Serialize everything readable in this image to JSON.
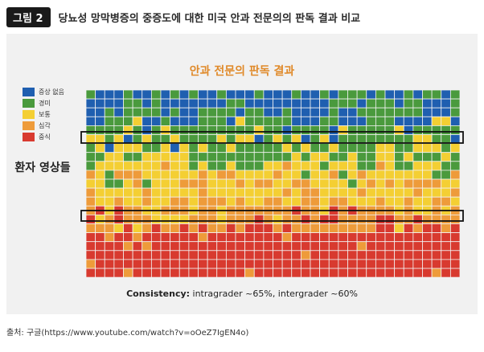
{
  "header": {
    "badge": "그림 2",
    "title": "당뇨성 망막병증의 중증도에 대한 미국 안과 전문의의 판독 결과 비교"
  },
  "chart_data": {
    "type": "heatmap",
    "title": "안과 전문의 판독 결과",
    "ylabel": "환자 영상들",
    "legend": [
      {
        "label": "증상 없음",
        "color": "#1f5fb0"
      },
      {
        "label": "경미",
        "color": "#4a9a3d"
      },
      {
        "label": "보통",
        "color": "#f4cf33"
      },
      {
        "label": "심각",
        "color": "#ee9b3a"
      },
      {
        "label": "중식",
        "color": "#d83a2f"
      }
    ],
    "grid_rows": 21,
    "grid_cols": 40,
    "annotation_label": "Consistency:",
    "annotation_text": " intragrader ~65%, intergrader ~60%"
  },
  "source": "출처: 구글(https://www.youtube.com/watch?v=oOeZ7IgEN4o)"
}
